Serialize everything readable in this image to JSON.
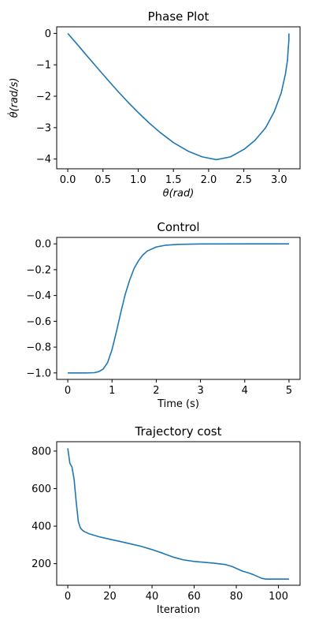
{
  "colors": {
    "line": "#1f77b4",
    "axis": "#000000",
    "background": "#ffffff"
  },
  "chart_data": [
    {
      "type": "line",
      "title": "Phase Plot",
      "xlabel": "θ(rad)",
      "ylabel": "θ̇(rad/s)",
      "xlim": [
        -0.157,
        3.298
      ],
      "ylim": [
        -4.31,
        0.21
      ],
      "xticks": [
        0.0,
        0.5,
        1.0,
        1.5,
        2.0,
        2.5,
        3.0
      ],
      "xtick_labels": [
        "0.0",
        "0.5",
        "1.0",
        "1.5",
        "2.0",
        "2.5",
        "3.0"
      ],
      "yticks": [
        0,
        -1,
        -2,
        -3,
        -4
      ],
      "ytick_labels": [
        "0",
        "−1",
        "−2",
        "−3",
        "−4"
      ],
      "grid": false,
      "series": [
        {
          "x": [
            0.0,
            0.12,
            0.26,
            0.41,
            0.56,
            0.71,
            0.86,
            1.01,
            1.16,
            1.31,
            1.51,
            1.71,
            1.91,
            2.11,
            2.31,
            2.51,
            2.66,
            2.81,
            2.93,
            3.03,
            3.09,
            3.12,
            3.13,
            3.14,
            3.14
          ],
          "y": [
            0.0,
            -0.31,
            -0.68,
            -1.07,
            -1.46,
            -1.84,
            -2.2,
            -2.54,
            -2.86,
            -3.15,
            -3.49,
            -3.75,
            -3.93,
            -4.02,
            -3.93,
            -3.68,
            -3.4,
            -3.0,
            -2.5,
            -1.9,
            -1.3,
            -0.85,
            -0.5,
            -0.2,
            0.0
          ]
        }
      ]
    },
    {
      "type": "line",
      "title": "Control",
      "xlabel": "Time (s)",
      "ylabel": "",
      "xlim": [
        -0.25,
        5.25
      ],
      "ylim": [
        -1.05,
        0.05
      ],
      "xticks": [
        0,
        1,
        2,
        3,
        4,
        5
      ],
      "xtick_labels": [
        "0",
        "1",
        "2",
        "3",
        "4",
        "5"
      ],
      "yticks": [
        0.0,
        -0.2,
        -0.4,
        -0.6,
        -0.8,
        -1.0
      ],
      "ytick_labels": [
        "0.0",
        "−0.2",
        "−0.4",
        "−0.6",
        "−0.8",
        "−1.0"
      ],
      "grid": false,
      "series": [
        {
          "x": [
            0.0,
            0.4,
            0.6,
            0.7,
            0.8,
            0.9,
            1.0,
            1.1,
            1.2,
            1.3,
            1.4,
            1.5,
            1.6,
            1.7,
            1.8,
            2.0,
            2.2,
            2.5,
            3.0,
            4.0,
            5.0
          ],
          "y": [
            -1.0,
            -1.0,
            -0.998,
            -0.99,
            -0.97,
            -0.92,
            -0.82,
            -0.68,
            -0.53,
            -0.39,
            -0.28,
            -0.19,
            -0.13,
            -0.085,
            -0.055,
            -0.024,
            -0.011,
            -0.004,
            -0.001,
            0.0,
            0.0
          ]
        }
      ]
    },
    {
      "type": "line",
      "title": "Trajectory cost",
      "xlabel": "Iteration",
      "ylabel": "",
      "xlim": [
        -5.25,
        110.25
      ],
      "ylim": [
        85,
        850
      ],
      "xticks": [
        0,
        20,
        40,
        60,
        80,
        100
      ],
      "xtick_labels": [
        "0",
        "20",
        "40",
        "60",
        "80",
        "100"
      ],
      "yticks": [
        800,
        600,
        400,
        200
      ],
      "ytick_labels": [
        "800",
        "600",
        "400",
        "200"
      ],
      "grid": false,
      "series": [
        {
          "x": [
            0,
            1,
            2,
            3,
            4,
            5,
            6,
            7,
            8,
            10,
            15,
            20,
            25,
            30,
            35,
            40,
            45,
            50,
            55,
            60,
            65,
            70,
            75,
            78,
            80,
            83,
            86,
            88,
            90,
            92,
            94,
            96,
            100,
            105
          ],
          "y": [
            815,
            735,
            715,
            650,
            530,
            425,
            390,
            378,
            370,
            360,
            343,
            330,
            318,
            305,
            292,
            275,
            256,
            235,
            220,
            212,
            207,
            202,
            195,
            185,
            175,
            160,
            150,
            142,
            132,
            122,
            118,
            118,
            118,
            118
          ]
        }
      ]
    }
  ]
}
